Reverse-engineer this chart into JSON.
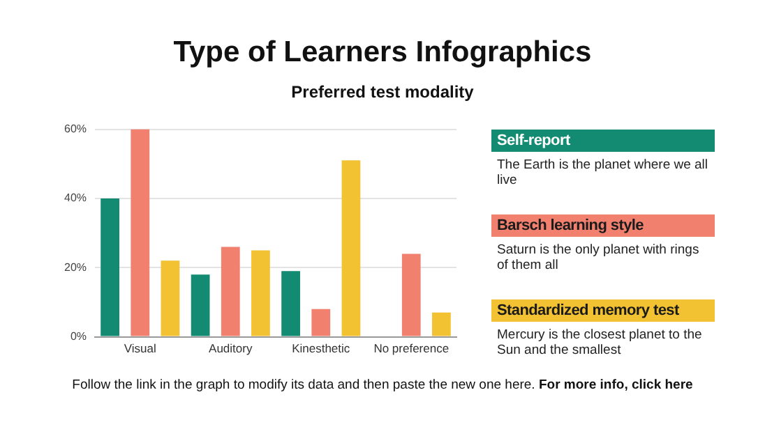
{
  "chart_data": {
    "type": "bar",
    "title": "Type of Learners Infographics",
    "subtitle": "Preferred test modality",
    "categories": [
      "Visual",
      "Auditory",
      "Kinesthetic",
      "No preference"
    ],
    "series": [
      {
        "name": "Self-report",
        "color": "#138a72",
        "values": [
          40,
          18,
          19,
          null
        ]
      },
      {
        "name": "Barsch learning style",
        "color": "#f1806f",
        "values": [
          60,
          26,
          8,
          24
        ]
      },
      {
        "name": "Standardized memory test",
        "color": "#f3c232",
        "values": [
          22,
          25,
          51,
          7
        ]
      }
    ],
    "ylim": [
      0,
      60
    ],
    "yticks": [
      {
        "value": 0,
        "label": "0%"
      },
      {
        "value": 20,
        "label": "20%"
      },
      {
        "value": 40,
        "label": "40%"
      },
      {
        "value": 60,
        "label": "60%"
      }
    ],
    "grid": "y",
    "legend": "right",
    "annotations": [
      "The Earth is the planet where we all live",
      "Saturn is the only planet with rings of them all",
      "Mercury is the closest planet to the Sun and the smallest",
      "Follow the link in the graph to modify its data and then paste the new one here.",
      "For more info, click here"
    ]
  }
}
